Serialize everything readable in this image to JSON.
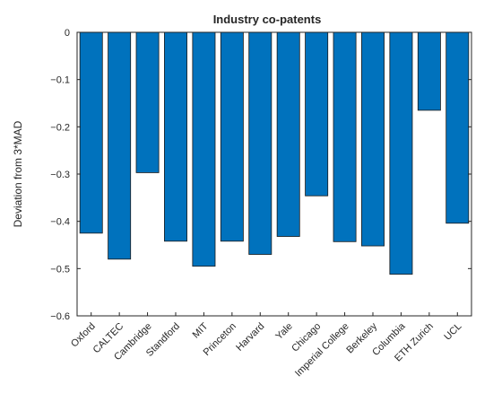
{
  "chart_data": {
    "type": "bar",
    "title": "Industry co-patents",
    "xlabel": "",
    "ylabel": "Deviation from 3*MAD",
    "categories": [
      "Oxford",
      "CALTEC",
      "Cambridge",
      "Standford",
      "MIT",
      "Princeton",
      "Harvard",
      "Yale",
      "Chicago",
      "Imperial College",
      "Berkeley",
      "Columbia",
      "ETH Zurich",
      "UCL"
    ],
    "values": [
      -0.425,
      -0.48,
      -0.297,
      -0.442,
      -0.495,
      -0.442,
      -0.47,
      -0.432,
      -0.346,
      -0.443,
      -0.452,
      -0.512,
      -0.165,
      -0.404
    ],
    "ylim": [
      -0.6,
      0
    ],
    "yticks": [
      0,
      -0.1,
      -0.2,
      -0.3,
      -0.4,
      -0.5,
      -0.6
    ],
    "ytick_labels": [
      "0",
      "−0.1",
      "−0.2",
      "−0.3",
      "−0.4",
      "−0.5",
      "−0.6"
    ],
    "grid": false,
    "bar_color": "#0072BD",
    "bar_edge_color": "#1a1a1a",
    "axis_color": "#262626"
  }
}
